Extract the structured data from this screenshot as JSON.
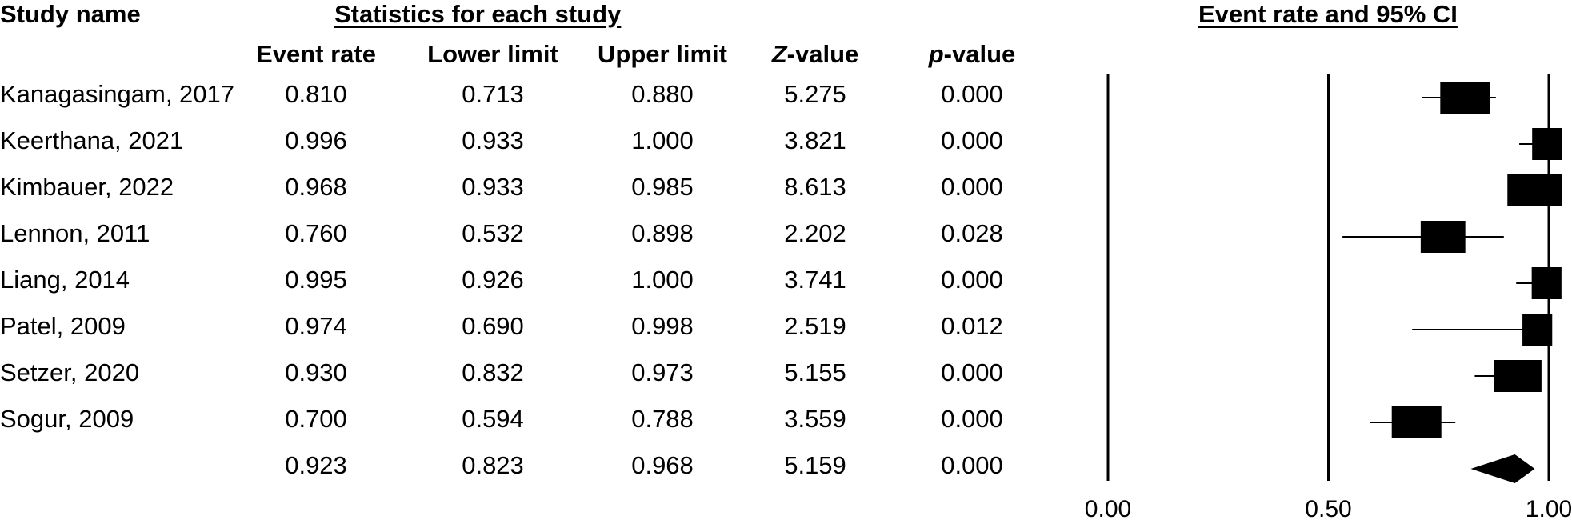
{
  "headers": {
    "study": "Study name",
    "stats_group": "Statistics for each study",
    "plot": "Event rate and 95% CI",
    "event_rate": "Event rate",
    "lower": "Lower limit",
    "upper": "Upper limit",
    "z_prefix": "Z",
    "z_suffix": "-value",
    "p_prefix": "p",
    "p_suffix": "-value"
  },
  "rows": [
    {
      "study": "Kanagasingam, 2017",
      "event_rate": "0.810",
      "lower": "0.713",
      "upper": "0.880",
      "z": "5.275",
      "p": "0.000"
    },
    {
      "study": "Keerthana, 2021",
      "event_rate": "0.996",
      "lower": "0.933",
      "upper": "1.000",
      "z": "3.821",
      "p": "0.000"
    },
    {
      "study": "Kimbauer, 2022",
      "event_rate": "0.968",
      "lower": "0.933",
      "upper": "0.985",
      "z": "8.613",
      "p": "0.000"
    },
    {
      "study": "Lennon, 2011",
      "event_rate": "0.760",
      "lower": "0.532",
      "upper": "0.898",
      "z": "2.202",
      "p": "0.028"
    },
    {
      "study": "Liang, 2014",
      "event_rate": "0.995",
      "lower": "0.926",
      "upper": "1.000",
      "z": "3.741",
      "p": "0.000"
    },
    {
      "study": "Patel, 2009",
      "event_rate": "0.974",
      "lower": "0.690",
      "upper": "0.998",
      "z": "2.519",
      "p": "0.012"
    },
    {
      "study": "Setzer, 2020",
      "event_rate": "0.930",
      "lower": "0.832",
      "upper": "0.973",
      "z": "5.155",
      "p": "0.000"
    },
    {
      "study": "Sogur, 2009",
      "event_rate": "0.700",
      "lower": "0.594",
      "upper": "0.788",
      "z": "3.559",
      "p": "0.000"
    }
  ],
  "summary": {
    "study": "",
    "event_rate": "0.923",
    "lower": "0.823",
    "upper": "0.968",
    "z": "5.159",
    "p": "0.000"
  },
  "chart_data": {
    "type": "forest",
    "title": "Event rate and 95% CI",
    "xlim": [
      0,
      1
    ],
    "xticks": [
      "0.00",
      "0.50",
      "1.00"
    ],
    "reference_lines": [
      0,
      0.5,
      1
    ],
    "studies": [
      {
        "name": "Kanagasingam, 2017",
        "est": 0.81,
        "lo": 0.713,
        "hi": 0.88,
        "weight": 1.0
      },
      {
        "name": "Keerthana, 2021",
        "est": 0.996,
        "lo": 0.933,
        "hi": 1.0,
        "weight": 0.6
      },
      {
        "name": "Kimbauer, 2022",
        "est": 0.968,
        "lo": 0.933,
        "hi": 0.985,
        "weight": 1.1
      },
      {
        "name": "Lennon, 2011",
        "est": 0.76,
        "lo": 0.532,
        "hi": 0.898,
        "weight": 0.9
      },
      {
        "name": "Liang, 2014",
        "est": 0.995,
        "lo": 0.926,
        "hi": 1.0,
        "weight": 0.6
      },
      {
        "name": "Patel, 2009",
        "est": 0.974,
        "lo": 0.69,
        "hi": 0.998,
        "weight": 0.6
      },
      {
        "name": "Setzer, 2020",
        "est": 0.93,
        "lo": 0.832,
        "hi": 0.973,
        "weight": 0.95
      },
      {
        "name": "Sogur, 2009",
        "est": 0.7,
        "lo": 0.594,
        "hi": 0.788,
        "weight": 1.0
      }
    ],
    "pooled": {
      "est": 0.923,
      "lo": 0.823,
      "hi": 0.968
    }
  }
}
